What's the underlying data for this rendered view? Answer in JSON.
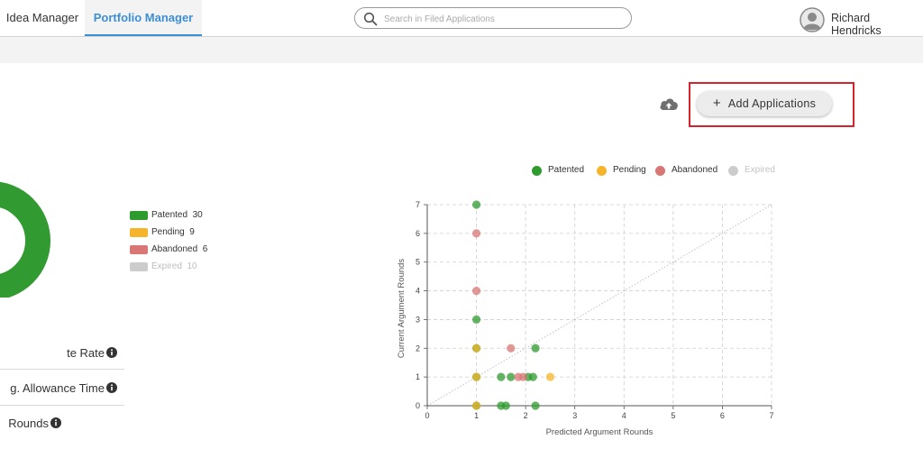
{
  "header": {
    "tabs": [
      {
        "label": "Idea Manager"
      },
      {
        "label": "Portfolio Manager"
      }
    ],
    "search": {
      "placeholder": "Search in Filed Applications"
    },
    "user": {
      "name": "Richard Hendricks"
    }
  },
  "toolbar": {
    "add_label": "Add Applications",
    "plus_symbol": "+",
    "upload_icon": "cloud-upload-icon"
  },
  "status_legend": [
    {
      "label": "Patented",
      "count": "30",
      "color": "#2e9b2e"
    },
    {
      "label": "Pending",
      "count": "9",
      "color": "#f6b42b"
    },
    {
      "label": "Abandoned",
      "count": "6",
      "color": "#d97676"
    },
    {
      "label": "Expired",
      "count": "10",
      "color": "#cccccc"
    }
  ],
  "stats": [
    {
      "label": "te Rate"
    },
    {
      "label": "g. Allowance Time"
    },
    {
      "label": "Rounds"
    }
  ],
  "chart_data": {
    "type": "scatter",
    "xlabel": "Predicted Argument Rounds",
    "ylabel": "Current Argument Rounds",
    "xlim": [
      0,
      7
    ],
    "ylim": [
      0,
      7
    ],
    "x_ticks": [
      "0",
      "1",
      "2",
      "3",
      "4",
      "5",
      "6",
      "7"
    ],
    "y_ticks": [
      "0",
      "1",
      "2",
      "3",
      "4",
      "5",
      "6",
      "7"
    ],
    "grid": true,
    "legend_position": "top",
    "diagonal_reference_line": true,
    "series": [
      {
        "name": "Patented",
        "color": "#2e9b2e",
        "points": [
          [
            1,
            7
          ],
          [
            1,
            3
          ],
          [
            1,
            2
          ],
          [
            1,
            1
          ],
          [
            1,
            0
          ],
          [
            1.5,
            1
          ],
          [
            1.7,
            1
          ],
          [
            2.05,
            1
          ],
          [
            2.15,
            1
          ],
          [
            2.2,
            2
          ],
          [
            1.5,
            0
          ],
          [
            1.6,
            0
          ],
          [
            2.2,
            0
          ]
        ]
      },
      {
        "name": "Pending",
        "color": "#f6b42b",
        "points": [
          [
            1,
            2
          ],
          [
            1,
            1
          ],
          [
            1,
            0
          ],
          [
            2.5,
            1
          ]
        ]
      },
      {
        "name": "Abandoned",
        "color": "#d97676",
        "points": [
          [
            1,
            6
          ],
          [
            1,
            4
          ],
          [
            1.7,
            2
          ],
          [
            1.85,
            1
          ],
          [
            1.95,
            1
          ]
        ]
      },
      {
        "name": "Expired",
        "color": "#cccccc",
        "points": []
      }
    ]
  }
}
